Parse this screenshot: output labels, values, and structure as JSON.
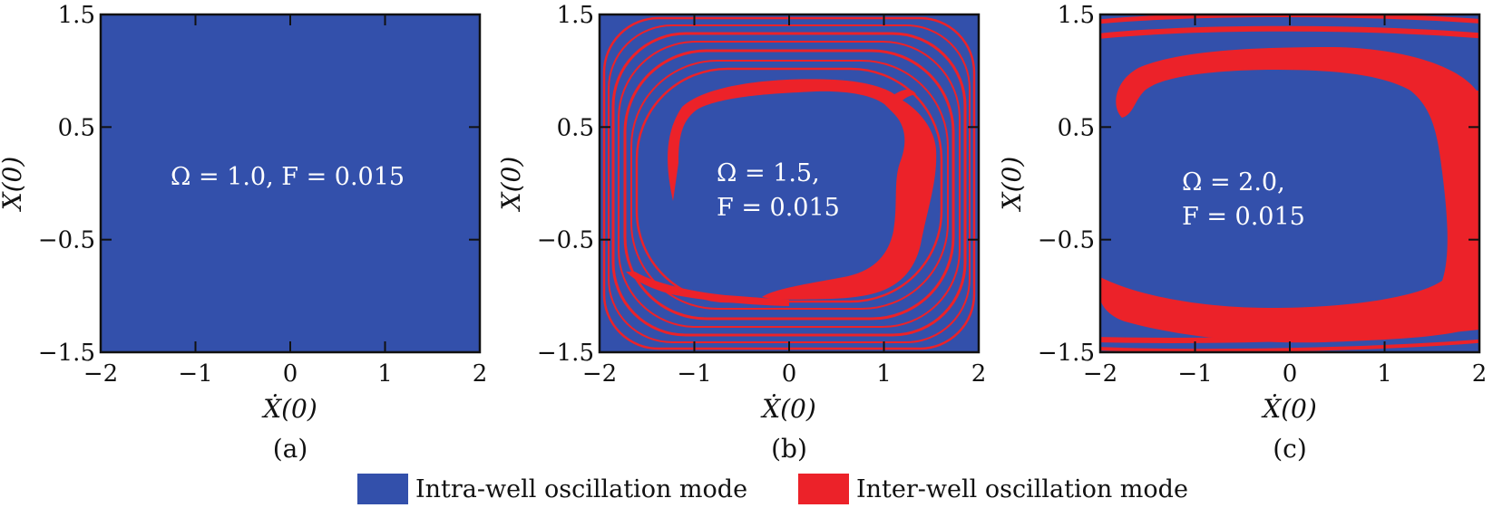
{
  "colors": {
    "intra": "#3350ab",
    "inter": "#ec2229",
    "axis": "#111111"
  },
  "legend": {
    "intra_label": "Intra-well oscillation mode",
    "inter_label": "Inter-well oscillation mode"
  },
  "chart_data": [
    {
      "type": "heatmap",
      "panel_label": "(a)",
      "annotation": [
        "Ω = 1.0, F = 0.015"
      ],
      "xlabel": "Ẋ(0)",
      "ylabel": "X(0)",
      "xlim": [
        -2,
        2
      ],
      "ylim": [
        -1.5,
        1.5
      ],
      "xticks": [
        -2,
        -1,
        0,
        1,
        2
      ],
      "yticks": [
        -1.5,
        -0.5,
        0.5,
        1.5
      ],
      "xtick_labels": [
        "−2",
        "−1",
        "0",
        "1",
        "2"
      ],
      "ytick_labels": [
        "−1.5",
        "−0.5",
        "0.5",
        "1.5"
      ],
      "regions": {
        "background": "intra",
        "inter_well": []
      }
    },
    {
      "type": "heatmap",
      "panel_label": "(b)",
      "annotation": [
        "Ω = 1.5,",
        "F = 0.015"
      ],
      "xlabel": "Ẋ(0)",
      "ylabel": "X(0)",
      "xlim": [
        -2,
        2
      ],
      "ylim": [
        -1.5,
        1.5
      ],
      "xticks": [
        -2,
        -1,
        0,
        1,
        2
      ],
      "yticks": [
        -1.5,
        -0.5,
        0.5,
        1.5
      ],
      "xtick_labels": [
        "−2",
        "−1",
        "0",
        "1",
        "2"
      ],
      "ytick_labels": [
        "−1.5",
        "−0.5",
        "0.5",
        "1.5"
      ],
      "regions": {
        "background": "intra",
        "inter_well": [
          {
            "shape": "spiral_band",
            "points": [
              [
                -1.2,
                -0.15
              ],
              [
                -1.15,
                0.35
              ],
              [
                -0.6,
                0.8
              ],
              [
                0.3,
                0.85
              ],
              [
                1.1,
                0.65
              ],
              [
                1.45,
                0.2
              ],
              [
                1.2,
                -0.5
              ],
              [
                0.8,
                -0.85
              ],
              [
                0.0,
                -1.0
              ],
              [
                -0.3,
                -0.9
              ]
            ]
          },
          {
            "shape": "concentric_rings",
            "count": 7,
            "inner_halfwidth": 1.8,
            "inner_halfheight": 1.05
          }
        ]
      }
    },
    {
      "type": "heatmap",
      "panel_label": "(c)",
      "annotation": [
        "Ω = 2.0,",
        "F = 0.015"
      ],
      "xlabel": "Ẋ(0)",
      "ylabel": "X(0)",
      "xlim": [
        -2,
        2
      ],
      "ylim": [
        -1.5,
        1.5
      ],
      "xticks": [
        -2,
        -1,
        0,
        1,
        2
      ],
      "yticks": [
        -1.5,
        -0.5,
        0.5,
        1.5
      ],
      "xtick_labels": [
        "−2",
        "−1",
        "0",
        "1",
        "2"
      ],
      "ytick_labels": [
        "−1.5",
        "−0.5",
        "0.5",
        "1.5"
      ],
      "regions": {
        "background": "intra",
        "inter_well": [
          {
            "shape": "crescent_band",
            "points": [
              [
                -1.7,
                0.6
              ],
              [
                -1.6,
                1.0
              ],
              [
                0.0,
                1.2
              ],
              [
                1.4,
                1.0
              ],
              [
                1.95,
                0.4
              ],
              [
                1.95,
                -0.6
              ],
              [
                1.6,
                -1.0
              ],
              [
                0.5,
                -1.15
              ],
              [
                -1.0,
                -1.15
              ],
              [
                -2.0,
                -0.75
              ]
            ]
          },
          {
            "shape": "outer_stripes",
            "count": 4
          }
        ]
      }
    }
  ]
}
